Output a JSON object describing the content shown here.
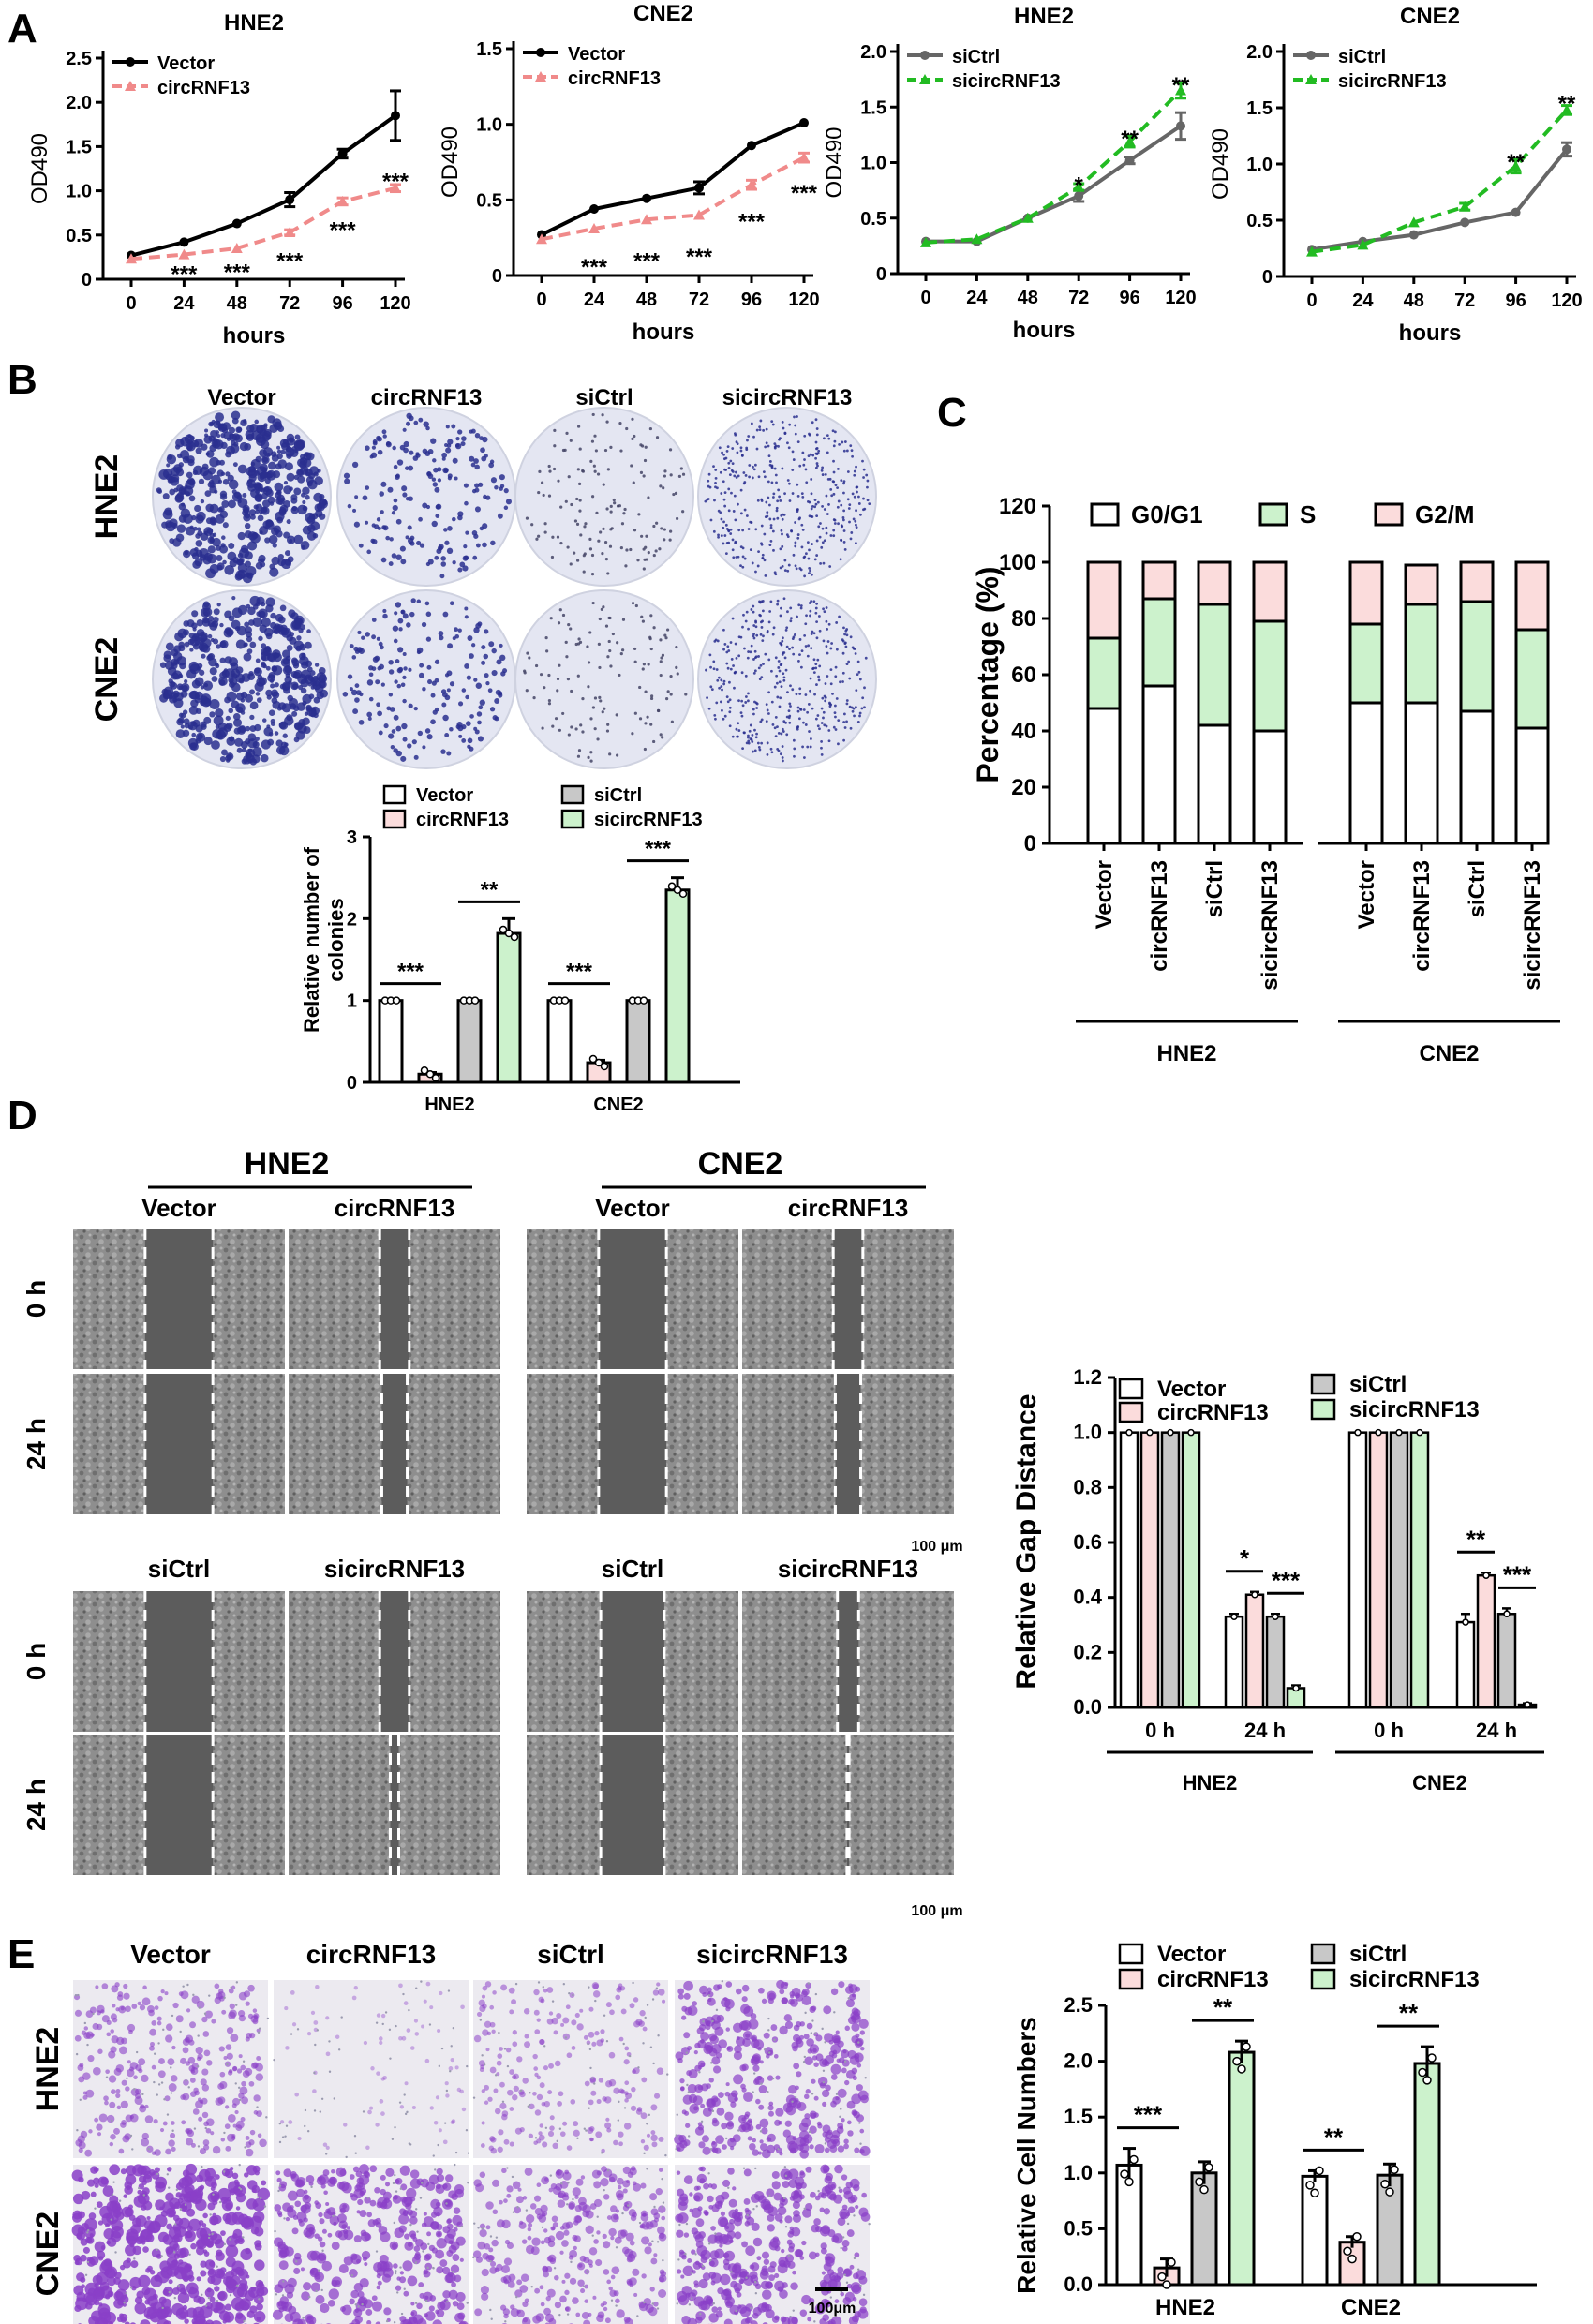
{
  "panels": {
    "A": "A",
    "B": "B",
    "C": "C",
    "D": "D",
    "E": "E"
  },
  "colors": {
    "vector": "#000000",
    "circ": "#f08a8a",
    "sictrl": "#666666",
    "sicirc": "#22bb22",
    "bar_vector": "#ffffff",
    "bar_circ": "#fbdcdc",
    "bar_sictrl": "#c8c8c8",
    "bar_sicirc": "#ccf2cc",
    "crystal_violet": "#2a2f8f",
    "transwell_purple": "#8a3fc8"
  },
  "panelA": {
    "chart_data": [
      {
        "type": "line",
        "title": "HNE2",
        "xlabel": "hours",
        "ylabel": "OD490",
        "x": [
          0,
          24,
          48,
          72,
          96,
          120
        ],
        "ylim": [
          0,
          2.5
        ],
        "yticks": [
          0,
          0.5,
          1.0,
          1.5,
          2.0,
          2.5
        ],
        "series": [
          {
            "name": "Vector",
            "values": [
              0.27,
              0.42,
              0.63,
              0.9,
              1.42,
              1.85
            ],
            "err": [
              0.02,
              0.02,
              0.02,
              0.08,
              0.05,
              0.28
            ]
          },
          {
            "name": "circRNF13",
            "values": [
              0.23,
              0.28,
              0.35,
              0.53,
              0.88,
              1.03
            ],
            "err": [
              0.02,
              0.02,
              0.02,
              0.03,
              0.04,
              0.04
            ]
          }
        ],
        "sig": [
          {
            "x": 24,
            "label": "***",
            "y": 0.1
          },
          {
            "x": 48,
            "label": "***",
            "y": 0.12
          },
          {
            "x": 72,
            "label": "***",
            "y": 0.25
          },
          {
            "x": 96,
            "label": "***",
            "y": 0.6
          },
          {
            "x": 120,
            "label": "***",
            "y": 1.15
          }
        ]
      },
      {
        "type": "line",
        "title": "CNE2",
        "xlabel": "hours",
        "ylabel": "OD490",
        "x": [
          0,
          24,
          48,
          72,
          96,
          120
        ],
        "ylim": [
          0,
          1.5
        ],
        "yticks": [
          0,
          0.5,
          1.0,
          1.5
        ],
        "series": [
          {
            "name": "Vector",
            "values": [
              0.27,
              0.44,
              0.51,
              0.58,
              0.86,
              1.01
            ],
            "err": [
              0.02,
              0.02,
              0.02,
              0.04,
              0.02,
              0.02
            ]
          },
          {
            "name": "circRNF13",
            "values": [
              0.24,
              0.31,
              0.37,
              0.4,
              0.6,
              0.78
            ],
            "err": [
              0.02,
              0.02,
              0.02,
              0.02,
              0.03,
              0.03
            ]
          }
        ],
        "sig": [
          {
            "x": 24,
            "label": "***",
            "y": 0.08
          },
          {
            "x": 48,
            "label": "***",
            "y": 0.12
          },
          {
            "x": 72,
            "label": "***",
            "y": 0.15
          },
          {
            "x": 96,
            "label": "***",
            "y": 0.38
          },
          {
            "x": 120,
            "label": "***",
            "y": 0.57
          }
        ]
      },
      {
        "type": "line",
        "title": "HNE2",
        "xlabel": "hours",
        "ylabel": "OD490",
        "x": [
          0,
          24,
          48,
          72,
          96,
          120
        ],
        "ylim": [
          0,
          2.0
        ],
        "yticks": [
          0,
          0.5,
          1.0,
          1.5,
          2.0
        ],
        "series": [
          {
            "name": "siCtrl",
            "values": [
              0.29,
              0.29,
              0.5,
              0.7,
              1.02,
              1.33
            ],
            "err": [
              0.02,
              0.02,
              0.02,
              0.05,
              0.03,
              0.12
            ]
          },
          {
            "name": "sicircRNF13",
            "values": [
              0.28,
              0.31,
              0.5,
              0.78,
              1.19,
              1.65
            ],
            "err": [
              0.02,
              0.02,
              0.02,
              0.03,
              0.05,
              0.07
            ]
          }
        ],
        "sig": [
          {
            "x": 72,
            "label": "*",
            "y": 0.83
          },
          {
            "x": 96,
            "label": "**",
            "y": 1.25
          },
          {
            "x": 120,
            "label": "**",
            "y": 1.73
          }
        ]
      },
      {
        "type": "line",
        "title": "CNE2",
        "xlabel": "hours",
        "ylabel": "OD490",
        "x": [
          0,
          24,
          48,
          72,
          96,
          120
        ],
        "ylim": [
          0,
          2.0
        ],
        "yticks": [
          0,
          0.5,
          1.0,
          1.5,
          2.0
        ],
        "series": [
          {
            "name": "siCtrl",
            "values": [
              0.24,
              0.31,
              0.37,
              0.48,
              0.57,
              1.13
            ],
            "err": [
              0.02,
              0.02,
              0.02,
              0.02,
              0.02,
              0.06
            ]
          },
          {
            "name": "sicircRNF13",
            "values": [
              0.22,
              0.28,
              0.48,
              0.62,
              0.98,
              1.48
            ],
            "err": [
              0.02,
              0.02,
              0.02,
              0.03,
              0.06,
              0.04
            ]
          }
        ],
        "sig": [
          {
            "x": 96,
            "label": "**",
            "y": 1.05
          },
          {
            "x": 120,
            "label": "**",
            "y": 1.57
          }
        ]
      }
    ]
  },
  "panelB": {
    "col_labels": [
      "Vector",
      "circRNF13",
      "siCtrl",
      "sicircRNF13"
    ],
    "row_labels": [
      "HNE2",
      "CNE2"
    ],
    "dish_density": [
      [
        1.0,
        0.35,
        0.25,
        0.9
      ],
      [
        1.0,
        0.35,
        0.22,
        0.9
      ]
    ],
    "chart_data": {
      "type": "bar",
      "ylabel": "Relative number of colonies",
      "groups": [
        "HNE2",
        "CNE2"
      ],
      "ylim": [
        0,
        3
      ],
      "yticks": [
        0,
        1,
        2,
        3
      ],
      "series": [
        {
          "name": "Vector",
          "values": [
            1.0,
            1.0
          ],
          "err": [
            0,
            0
          ]
        },
        {
          "name": "circRNF13",
          "values": [
            0.1,
            0.24
          ],
          "err": [
            0.02,
            0.03
          ]
        },
        {
          "name": "siCtrl",
          "values": [
            1.0,
            1.0
          ],
          "err": [
            0,
            0
          ]
        },
        {
          "name": "sicircRNF13",
          "values": [
            1.82,
            2.35
          ],
          "err": [
            0.18,
            0.15
          ]
        }
      ],
      "sig": [
        {
          "group": 0,
          "from": 0,
          "to": 1,
          "label": "***"
        },
        {
          "group": 0,
          "from": 2,
          "to": 3,
          "label": "**"
        },
        {
          "group": 1,
          "from": 0,
          "to": 1,
          "label": "***"
        },
        {
          "group": 1,
          "from": 2,
          "to": 3,
          "label": "***"
        }
      ]
    }
  },
  "panelC": {
    "chart_data": {
      "type": "bar",
      "stacked": true,
      "ylabel": "Percentage (%)",
      "ylim": [
        0,
        120
      ],
      "yticks": [
        0,
        20,
        40,
        60,
        80,
        100,
        120
      ],
      "categories": [
        "Vector",
        "circRNF13",
        "siCtrl",
        "sicircRNF13",
        "Vector",
        "circRNF13",
        "siCtrl",
        "sicircRNF13"
      ],
      "groups": [
        {
          "name": "HNE2",
          "from": 0,
          "to": 3
        },
        {
          "name": "CNE2",
          "from": 4,
          "to": 7
        }
      ],
      "series": [
        {
          "name": "G0/G1",
          "values": [
            48,
            56,
            42,
            40,
            50,
            50,
            47,
            41
          ]
        },
        {
          "name": "S",
          "values": [
            25,
            31,
            43,
            39,
            28,
            35,
            39,
            35
          ]
        },
        {
          "name": "G2/M",
          "values": [
            27,
            13,
            15,
            21,
            22,
            14,
            14,
            24
          ]
        }
      ]
    }
  },
  "panelD": {
    "groups": [
      "HNE2",
      "CNE2"
    ],
    "top_cols": [
      "Vector",
      "circRNF13"
    ],
    "bottom_cols": [
      "siCtrl",
      "sicircRNF13"
    ],
    "rows": [
      "0 h",
      "24 h"
    ],
    "scale_label": "100 μm",
    "gap_fractions": [
      [
        0.32,
        0.32,
        0.14,
        0.12
      ],
      [
        0.32,
        0.32,
        0.14,
        0.12
      ],
      [
        0.32,
        0.32,
        0.14,
        0.04
      ],
      [
        0.3,
        0.3,
        0.1,
        0.01
      ]
    ],
    "chart_data": {
      "type": "bar",
      "ylabel": "Relative Gap Distance",
      "ylim": [
        0,
        1.2
      ],
      "yticks": [
        0.0,
        0.2,
        0.4,
        0.6,
        0.8,
        1.0,
        1.2
      ],
      "categories": [
        "0 h",
        "24 h",
        "0 h",
        "24 h"
      ],
      "groups": [
        "HNE2",
        "CNE2"
      ],
      "series": [
        {
          "name": "Vector",
          "values": [
            1.0,
            0.33,
            1.0,
            0.31
          ],
          "err": [
            0,
            0.01,
            0,
            0.03
          ]
        },
        {
          "name": "circRNF13",
          "values": [
            1.0,
            0.41,
            1.0,
            0.48
          ],
          "err": [
            0,
            0.01,
            0,
            0.01
          ]
        },
        {
          "name": "siCtrl",
          "values": [
            1.0,
            0.33,
            1.0,
            0.34
          ],
          "err": [
            0,
            0.01,
            0,
            0.02
          ]
        },
        {
          "name": "sicircRNF13",
          "values": [
            1.0,
            0.07,
            1.0,
            0.01
          ],
          "err": [
            0,
            0.01,
            0,
            0.005
          ]
        }
      ],
      "sig": [
        {
          "cat": 1,
          "from": 0,
          "to": 1,
          "label": "*"
        },
        {
          "cat": 1,
          "from": 2,
          "to": 3,
          "label": "***"
        },
        {
          "cat": 3,
          "from": 0,
          "to": 1,
          "label": "**"
        },
        {
          "cat": 3,
          "from": 2,
          "to": 3,
          "label": "***"
        }
      ]
    }
  },
  "panelE": {
    "col_labels": [
      "Vector",
      "circRNF13",
      "siCtrl",
      "sicircRNF13"
    ],
    "row_labels": [
      "HNE2",
      "CNE2"
    ],
    "scale_label": "100μm",
    "cell_density": [
      [
        0.5,
        0.08,
        0.35,
        0.7
      ],
      [
        1.0,
        0.75,
        0.55,
        0.75
      ]
    ],
    "chart_data": {
      "type": "bar",
      "ylabel": "Relative Cell Numbers",
      "groups": [
        "HNE2",
        "CNE2"
      ],
      "ylim": [
        0,
        2.5
      ],
      "yticks": [
        0.0,
        0.5,
        1.0,
        1.5,
        2.0,
        2.5
      ],
      "series": [
        {
          "name": "Vector",
          "values": [
            1.07,
            0.97
          ],
          "err": [
            0.15,
            0.05
          ]
        },
        {
          "name": "circRNF13",
          "values": [
            0.15,
            0.38
          ],
          "err": [
            0.08,
            0.05
          ]
        },
        {
          "name": "siCtrl",
          "values": [
            1.0,
            0.98
          ],
          "err": [
            0.1,
            0.1
          ]
        },
        {
          "name": "sicircRNF13",
          "values": [
            2.08,
            1.98
          ],
          "err": [
            0.1,
            0.15
          ]
        }
      ],
      "sig": [
        {
          "group": 0,
          "from": 0,
          "to": 1,
          "label": "***"
        },
        {
          "group": 0,
          "from": 2,
          "to": 3,
          "label": "**"
        },
        {
          "group": 1,
          "from": 0,
          "to": 1,
          "label": "**"
        },
        {
          "group": 1,
          "from": 2,
          "to": 3,
          "label": "**"
        }
      ]
    }
  }
}
